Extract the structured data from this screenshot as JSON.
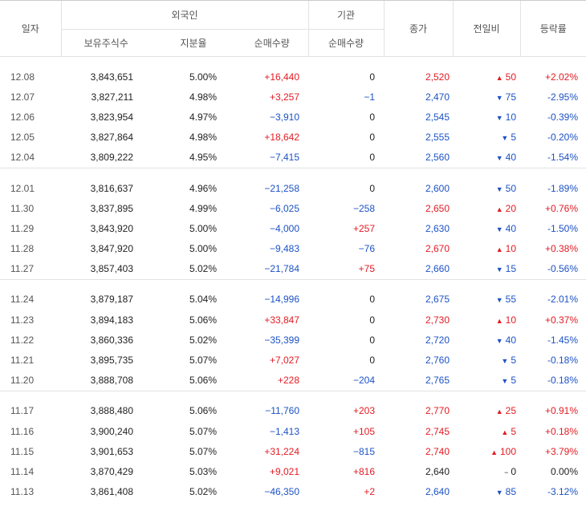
{
  "header": {
    "date": "일자",
    "foreign": "외국인",
    "institution": "기관",
    "close": "종가",
    "change": "전일비",
    "rate": "등락률",
    "holdings": "보유주식수",
    "share": "지분율",
    "foreign_net": "순매수량",
    "inst_net": "순매수량"
  },
  "groups": [
    [
      {
        "date": "12.08",
        "holdings": "3,843,651",
        "share": "5.00%",
        "fnet": "+16,440",
        "fdir": "red",
        "inet": "0",
        "idir": "dark",
        "close": "2,520",
        "cdir": "red",
        "arrow": "▲",
        "chg": "50",
        "rate": "+2.02%"
      },
      {
        "date": "12.07",
        "holdings": "3,827,211",
        "share": "4.98%",
        "fnet": "+3,257",
        "fdir": "red",
        "inet": "−1",
        "idir": "blue",
        "close": "2,470",
        "cdir": "blue",
        "arrow": "▼",
        "chg": "75",
        "rate": "-2.95%"
      },
      {
        "date": "12.06",
        "holdings": "3,823,954",
        "share": "4.97%",
        "fnet": "−3,910",
        "fdir": "blue",
        "inet": "0",
        "idir": "dark",
        "close": "2,545",
        "cdir": "blue",
        "arrow": "▼",
        "chg": "10",
        "rate": "-0.39%"
      },
      {
        "date": "12.05",
        "holdings": "3,827,864",
        "share": "4.98%",
        "fnet": "+18,642",
        "fdir": "red",
        "inet": "0",
        "idir": "dark",
        "close": "2,555",
        "cdir": "blue",
        "arrow": "▼",
        "chg": "5",
        "rate": "-0.20%"
      },
      {
        "date": "12.04",
        "holdings": "3,809,222",
        "share": "4.95%",
        "fnet": "−7,415",
        "fdir": "blue",
        "inet": "0",
        "idir": "dark",
        "close": "2,560",
        "cdir": "blue",
        "arrow": "▼",
        "chg": "40",
        "rate": "-1.54%"
      }
    ],
    [
      {
        "date": "12.01",
        "holdings": "3,816,637",
        "share": "4.96%",
        "fnet": "−21,258",
        "fdir": "blue",
        "inet": "0",
        "idir": "dark",
        "close": "2,600",
        "cdir": "blue",
        "arrow": "▼",
        "chg": "50",
        "rate": "-1.89%"
      },
      {
        "date": "11.30",
        "holdings": "3,837,895",
        "share": "4.99%",
        "fnet": "−6,025",
        "fdir": "blue",
        "inet": "−258",
        "idir": "blue",
        "close": "2,650",
        "cdir": "red",
        "arrow": "▲",
        "chg": "20",
        "rate": "+0.76%"
      },
      {
        "date": "11.29",
        "holdings": "3,843,920",
        "share": "5.00%",
        "fnet": "−4,000",
        "fdir": "blue",
        "inet": "+257",
        "idir": "red",
        "close": "2,630",
        "cdir": "blue",
        "arrow": "▼",
        "chg": "40",
        "rate": "-1.50%"
      },
      {
        "date": "11.28",
        "holdings": "3,847,920",
        "share": "5.00%",
        "fnet": "−9,483",
        "fdir": "blue",
        "inet": "−76",
        "idir": "blue",
        "close": "2,670",
        "cdir": "red",
        "arrow": "▲",
        "chg": "10",
        "rate": "+0.38%"
      },
      {
        "date": "11.27",
        "holdings": "3,857,403",
        "share": "5.02%",
        "fnet": "−21,784",
        "fdir": "blue",
        "inet": "+75",
        "idir": "red",
        "close": "2,660",
        "cdir": "blue",
        "arrow": "▼",
        "chg": "15",
        "rate": "-0.56%"
      }
    ],
    [
      {
        "date": "11.24",
        "holdings": "3,879,187",
        "share": "5.04%",
        "fnet": "−14,996",
        "fdir": "blue",
        "inet": "0",
        "idir": "dark",
        "close": "2,675",
        "cdir": "blue",
        "arrow": "▼",
        "chg": "55",
        "rate": "-2.01%"
      },
      {
        "date": "11.23",
        "holdings": "3,894,183",
        "share": "5.06%",
        "fnet": "+33,847",
        "fdir": "red",
        "inet": "0",
        "idir": "dark",
        "close": "2,730",
        "cdir": "red",
        "arrow": "▲",
        "chg": "10",
        "rate": "+0.37%"
      },
      {
        "date": "11.22",
        "holdings": "3,860,336",
        "share": "5.02%",
        "fnet": "−35,399",
        "fdir": "blue",
        "inet": "0",
        "idir": "dark",
        "close": "2,720",
        "cdir": "blue",
        "arrow": "▼",
        "chg": "40",
        "rate": "-1.45%"
      },
      {
        "date": "11.21",
        "holdings": "3,895,735",
        "share": "5.07%",
        "fnet": "+7,027",
        "fdir": "red",
        "inet": "0",
        "idir": "dark",
        "close": "2,760",
        "cdir": "blue",
        "arrow": "▼",
        "chg": "5",
        "rate": "-0.18%"
      },
      {
        "date": "11.20",
        "holdings": "3,888,708",
        "share": "5.06%",
        "fnet": "+228",
        "fdir": "red",
        "inet": "−204",
        "idir": "blue",
        "close": "2,765",
        "cdir": "blue",
        "arrow": "▼",
        "chg": "5",
        "rate": "-0.18%"
      }
    ],
    [
      {
        "date": "11.17",
        "holdings": "3,888,480",
        "share": "5.06%",
        "fnet": "−11,760",
        "fdir": "blue",
        "inet": "+203",
        "idir": "red",
        "close": "2,770",
        "cdir": "red",
        "arrow": "▲",
        "chg": "25",
        "rate": "+0.91%"
      },
      {
        "date": "11.16",
        "holdings": "3,900,240",
        "share": "5.07%",
        "fnet": "−1,413",
        "fdir": "blue",
        "inet": "+105",
        "idir": "red",
        "close": "2,745",
        "cdir": "red",
        "arrow": "▲",
        "chg": "5",
        "rate": "+0.18%"
      },
      {
        "date": "11.15",
        "holdings": "3,901,653",
        "share": "5.07%",
        "fnet": "+31,224",
        "fdir": "red",
        "inet": "−815",
        "idir": "blue",
        "close": "2,740",
        "cdir": "red",
        "arrow": "▲",
        "chg": "100",
        "rate": "+3.79%"
      },
      {
        "date": "11.14",
        "holdings": "3,870,429",
        "share": "5.03%",
        "fnet": "+9,021",
        "fdir": "red",
        "inet": "+816",
        "idir": "red",
        "close": "2,640",
        "cdir": "dark",
        "arrow": "−",
        "chg": "0",
        "rate": "0.00%"
      },
      {
        "date": "11.13",
        "holdings": "3,861,408",
        "share": "5.02%",
        "fnet": "−46,350",
        "fdir": "blue",
        "inet": "+2",
        "idir": "red",
        "close": "2,640",
        "cdir": "blue",
        "arrow": "▼",
        "chg": "85",
        "rate": "-3.12%"
      }
    ]
  ]
}
